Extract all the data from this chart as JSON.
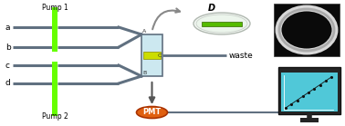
{
  "bg_color": "#ffffff",
  "pump1_label": "Pump 1",
  "pump2_label": "Pump 2",
  "pmt_label": "PMT",
  "waste_label": "waste",
  "D_label": "D",
  "channel_labels": [
    "a",
    "b",
    "c",
    "d"
  ],
  "green_bar_color": "#66ff00",
  "channel_color": "#607080",
  "cell_fill": "#cce8f0",
  "cell_border": "#607080",
  "pmt_fill": "#e06010",
  "pmt_text_color": "#ffffff",
  "arrow_color": "#999999",
  "monitor_screen": "#50c8d8",
  "monitor_body": "#202020",
  "petri_fill": "#eaf5ea",
  "sem_bg": "#111111",
  "sem_ring": "#dddddd"
}
